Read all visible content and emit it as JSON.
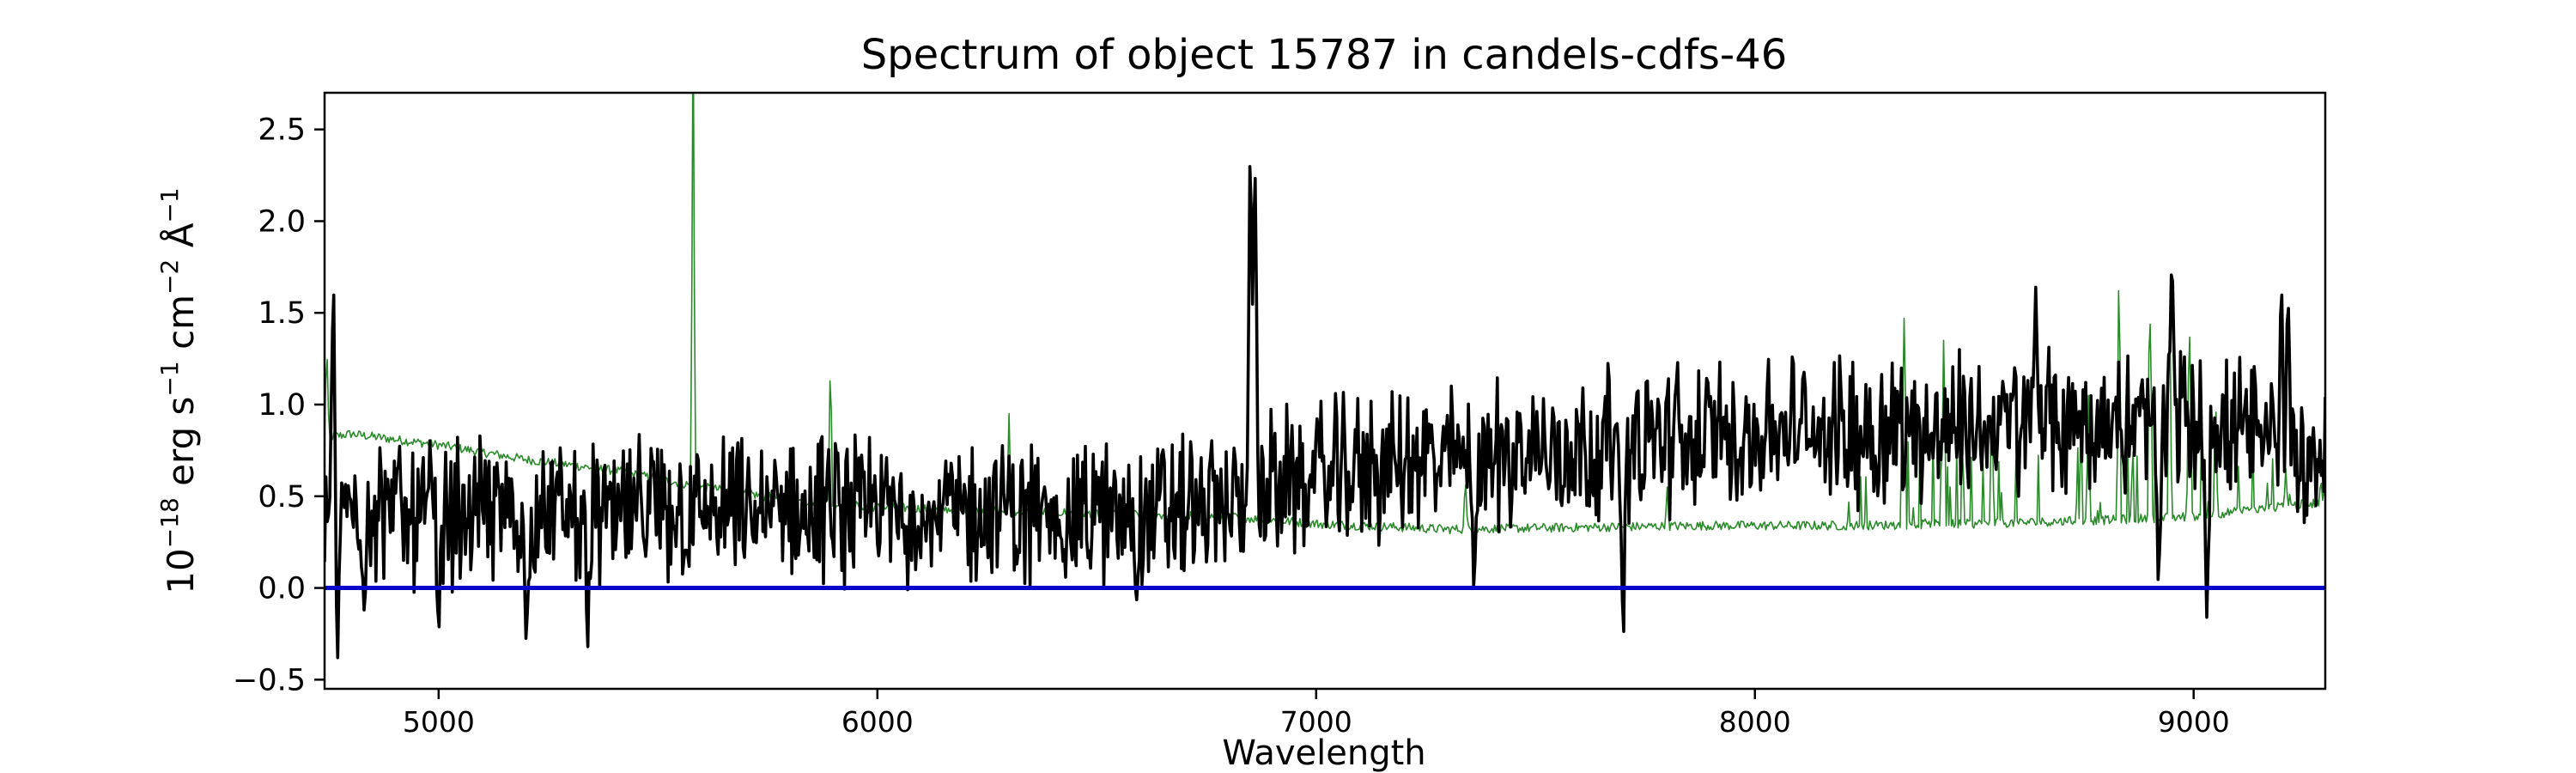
{
  "chart_data": {
    "type": "line",
    "title": "Spectrum of object 15787 in candels-cdfs-46",
    "xlabel": "Wavelength",
    "ylabel_parts": {
      "base": "10",
      "exp": "−18",
      "unit1": " erg s",
      "unit1_exp": "−1",
      "unit2": " cm",
      "unit2_exp": "−2",
      "unit3": " Å",
      "unit3_exp": "−1"
    },
    "xlim": [
      4740,
      9300
    ],
    "ylim": [
      -0.55,
      2.7
    ],
    "xticks": [
      5000,
      6000,
      7000,
      8000,
      9000
    ],
    "yticks": [
      -0.5,
      0.0,
      0.5,
      1.0,
      1.5,
      2.0,
      2.5
    ],
    "ytick_labels": [
      "−0.5",
      "0.0",
      "0.5",
      "1.0",
      "1.5",
      "2.0",
      "2.5"
    ],
    "grid": false,
    "series": [
      {
        "id": "noise",
        "color": "#2a8a2a",
        "style": "thin",
        "anchors": [
          [
            4740,
            0.82
          ],
          [
            4800,
            0.84
          ],
          [
            5000,
            0.78
          ],
          [
            5200,
            0.7
          ],
          [
            5400,
            0.64
          ],
          [
            5600,
            0.55
          ],
          [
            5800,
            0.48
          ],
          [
            6000,
            0.44
          ],
          [
            6300,
            0.42
          ],
          [
            6600,
            0.4
          ],
          [
            6800,
            0.39
          ],
          [
            7000,
            0.35
          ],
          [
            7300,
            0.32
          ],
          [
            7600,
            0.33
          ],
          [
            7900,
            0.34
          ],
          [
            8200,
            0.34
          ],
          [
            8500,
            0.35
          ],
          [
            8800,
            0.37
          ],
          [
            9000,
            0.39
          ],
          [
            9300,
            0.47
          ]
        ],
        "spikes": [
          [
            4745,
            1.35
          ],
          [
            5580,
            3.2
          ],
          [
            5893,
            1.3
          ],
          [
            6300,
            0.95
          ],
          [
            7340,
            0.62
          ],
          [
            7800,
            0.55
          ],
          [
            8340,
            1.47
          ],
          [
            8430,
            1.35
          ],
          [
            8540,
            1.1
          ],
          [
            8760,
            1.05
          ],
          [
            8830,
            1.93
          ],
          [
            8900,
            1.7
          ],
          [
            8945,
            1.75
          ],
          [
            8990,
            1.5
          ],
          [
            9050,
            1.1
          ],
          [
            9210,
            0.65
          ],
          [
            9290,
            0.6
          ]
        ]
      },
      {
        "id": "spectrum",
        "color": "#000000",
        "style": "thick",
        "anchors": [
          [
            4740,
            0.45
          ],
          [
            5000,
            0.42
          ],
          [
            5500,
            0.4
          ],
          [
            6000,
            0.42
          ],
          [
            6500,
            0.4
          ],
          [
            6800,
            0.45
          ],
          [
            7000,
            0.62
          ],
          [
            7500,
            0.75
          ],
          [
            8000,
            0.85
          ],
          [
            8500,
            0.88
          ],
          [
            9000,
            0.9
          ],
          [
            9300,
            0.7
          ]
        ],
        "features": [
          [
            4760,
            1.72
          ],
          [
            4770,
            -0.38
          ],
          [
            4830,
            -0.12
          ],
          [
            5000,
            -0.35
          ],
          [
            5200,
            -0.41
          ],
          [
            5340,
            -0.32
          ],
          [
            6590,
            -0.1
          ],
          [
            6850,
            2.55
          ],
          [
            6860,
            2.45
          ],
          [
            7360,
            -0.05
          ],
          [
            7700,
            -0.35
          ],
          [
            8640,
            1.64
          ],
          [
            8920,
            -0.1
          ],
          [
            8950,
            1.86
          ],
          [
            9030,
            -0.16
          ],
          [
            9200,
            1.71
          ],
          [
            9215,
            1.6
          ]
        ]
      },
      {
        "id": "zero-line",
        "color": "#0000cc",
        "style": "hline",
        "value": 0.0
      }
    ]
  }
}
